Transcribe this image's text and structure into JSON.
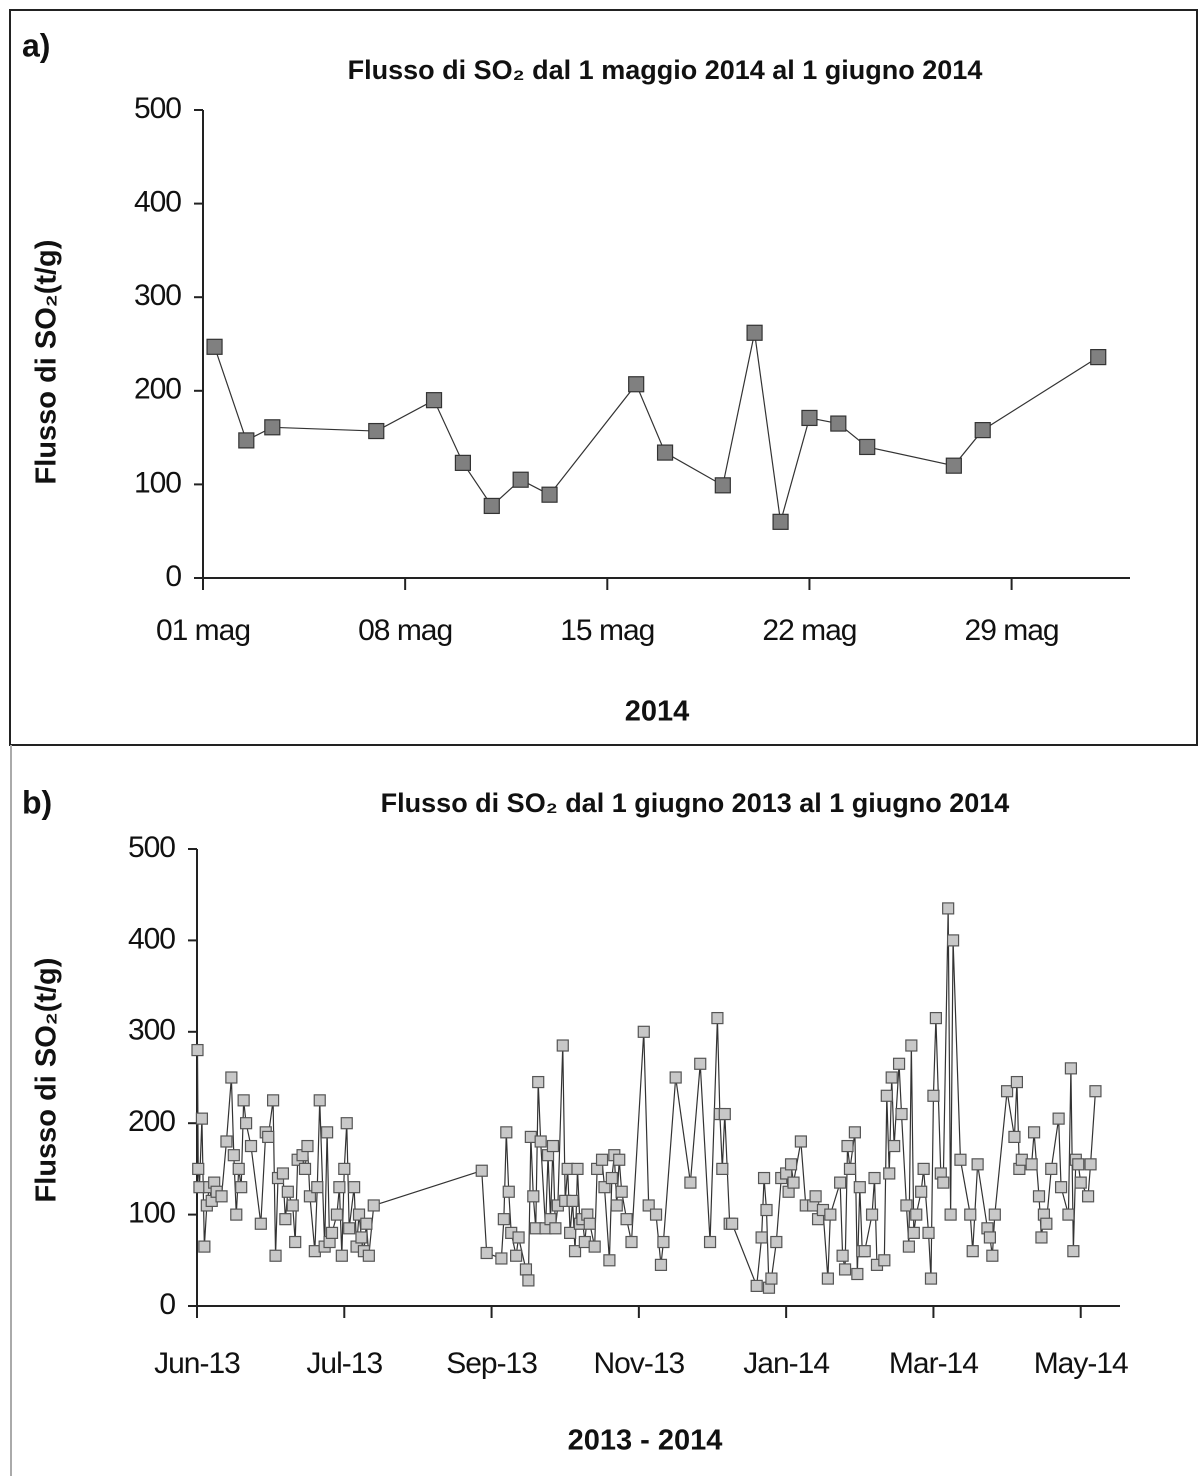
{
  "chart_data": [
    {
      "type": "line",
      "panel_label": "a)",
      "title": "Flusso di SO₂ dal 1 maggio 2014 al 1 giugno 2014",
      "x_label": "2014",
      "y_label": "Flusso di SO₂(t/g)",
      "xlim": [
        1,
        33.1
      ],
      "xticks": [
        {
          "value": 1,
          "label": "01 mag"
        },
        {
          "value": 8,
          "label": "08 mag"
        },
        {
          "value": 15,
          "label": "15 mag"
        },
        {
          "value": 22,
          "label": "22 mag"
        },
        {
          "value": 29,
          "label": "29 mag"
        }
      ],
      "ylim": [
        0,
        500
      ],
      "yticks": [
        0,
        100,
        200,
        300,
        400,
        500
      ],
      "series": [
        {
          "color": "#808080",
          "x": [
            1.4,
            2.5,
            3.4,
            7,
            9,
            10,
            11,
            12,
            13,
            16,
            17,
            19,
            20.1,
            21,
            22,
            23,
            24,
            27,
            28,
            32
          ],
          "values": [
            247,
            147,
            161,
            157,
            190,
            123,
            77,
            105,
            89,
            207,
            134,
            99,
            262,
            60,
            171,
            165,
            140,
            120,
            158,
            236
          ]
        }
      ]
    },
    {
      "type": "line",
      "panel_label": "b)",
      "title": "Flusso di SO₂ dal 1 giugno 2013 al 1 giugno 2014",
      "x_label": "2013 - 2014",
      "y_label": "Flusso di SO₂(t/g)",
      "xlim": [
        0,
        376
      ],
      "xticks": [
        {
          "value": 0,
          "label": "Jun-13"
        },
        {
          "value": 60,
          "label": "Jul-13"
        },
        {
          "value": 120,
          "label": "Sep-13"
        },
        {
          "value": 180,
          "label": "Nov-13"
        },
        {
          "value": 240,
          "label": "Jan-14"
        },
        {
          "value": 300,
          "label": "Mar-14"
        },
        {
          "value": 360,
          "label": "May-14"
        }
      ],
      "ylim": [
        0,
        500
      ],
      "yticks": [
        0,
        100,
        200,
        300,
        400,
        500
      ],
      "series": [
        {
          "color": "#c8c8c8",
          "x": [
            0.2,
            0.5,
            1,
            2,
            3,
            4,
            5,
            6,
            7,
            8,
            10,
            12,
            14,
            15,
            16,
            17,
            18,
            19,
            20,
            22,
            26,
            28,
            29,
            31,
            32,
            33,
            35,
            36,
            37,
            39,
            40,
            41,
            43,
            44,
            45,
            46,
            48,
            49,
            50,
            52,
            53,
            54,
            55,
            57,
            58,
            59,
            60,
            61,
            62,
            64,
            65,
            66,
            67,
            68,
            69,
            70,
            72,
            116,
            118,
            124,
            125,
            126,
            127,
            128,
            130,
            131,
            134,
            135,
            136,
            137,
            138,
            139,
            140,
            142,
            143,
            144,
            145,
            146,
            147,
            149,
            150,
            151,
            152,
            153,
            154,
            155,
            156,
            157,
            158,
            159,
            160,
            162,
            163,
            165,
            166,
            168,
            169,
            170,
            171,
            172,
            173,
            175,
            177,
            182,
            184,
            187,
            189,
            190,
            195,
            201,
            205,
            209,
            212,
            213,
            214,
            215,
            217,
            218,
            228,
            230,
            231,
            232,
            233,
            234,
            236,
            238,
            240,
            241,
            242,
            243,
            246,
            248,
            251,
            252,
            253,
            255,
            257,
            258,
            262,
            263,
            264,
            265,
            266,
            268,
            269,
            270,
            271,
            272,
            275,
            276,
            277,
            280,
            281,
            282,
            283,
            284,
            286,
            287,
            289,
            290,
            291,
            292,
            293,
            295,
            296,
            298,
            299,
            300,
            301,
            303,
            304,
            306,
            307,
            308,
            311,
            315,
            316,
            318,
            322,
            323,
            324,
            325,
            330,
            333,
            334,
            335,
            336,
            340,
            341,
            343,
            344,
            345,
            346,
            348,
            351,
            352,
            355,
            356,
            357,
            358,
            359,
            360,
            363,
            364,
            366
          ],
          "values": [
            280,
            150,
            130,
            205,
            65,
            110,
            130,
            115,
            135,
            125,
            120,
            180,
            250,
            165,
            100,
            150,
            130,
            225,
            200,
            175,
            90,
            190,
            185,
            225,
            55,
            140,
            145,
            95,
            125,
            110,
            70,
            160,
            165,
            150,
            175,
            120,
            60,
            130,
            225,
            65,
            190,
            70,
            80,
            100,
            130,
            55,
            150,
            200,
            85,
            130,
            65,
            100,
            75,
            60,
            90,
            55,
            110,
            148,
            58,
            52,
            95,
            190,
            125,
            80,
            55,
            75,
            40,
            28,
            185,
            120,
            85,
            245,
            180,
            85,
            165,
            95,
            175,
            85,
            110,
            285,
            115,
            150,
            80,
            115,
            60,
            150,
            90,
            95,
            70,
            100,
            90,
            65,
            150,
            160,
            130,
            50,
            140,
            165,
            110,
            160,
            125,
            95,
            70,
            300,
            110,
            100,
            45,
            70,
            250,
            135,
            265,
            70,
            315,
            210,
            150,
            210,
            90,
            90,
            22,
            75,
            140,
            105,
            20,
            30,
            70,
            140,
            145,
            125,
            155,
            135,
            180,
            110,
            110,
            120,
            95,
            105,
            30,
            100,
            135,
            55,
            40,
            175,
            150,
            190,
            35,
            130,
            60,
            60,
            100,
            140,
            45,
            50,
            230,
            145,
            250,
            175,
            265,
            210,
            110,
            65,
            285,
            80,
            100,
            125,
            150,
            80,
            30,
            230,
            315,
            145,
            135,
            435,
            100,
            400,
            160,
            100,
            60,
            155,
            85,
            75,
            55,
            100,
            235,
            185,
            245,
            150,
            160,
            155,
            190,
            120,
            75,
            100,
            90,
            150,
            205,
            130,
            100,
            260,
            60,
            160,
            155,
            135,
            120,
            155,
            235
          ]
        }
      ]
    }
  ]
}
